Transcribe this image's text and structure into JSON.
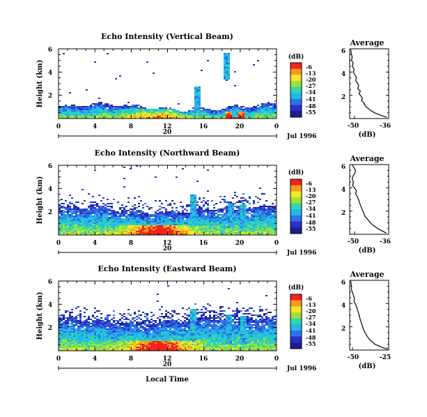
{
  "figure": {
    "xlabel": "Local Time",
    "ylabel": "Height (km)",
    "date_day": "20",
    "date_month_year": "Jul 1996",
    "colorbar_unit": "(dB)",
    "colorbar_ticks": [
      "-6",
      "-13",
      "-20",
      "-27",
      "-34",
      "-41",
      "-48",
      "-55"
    ],
    "colorbar_colors": [
      "#f4231c",
      "#f89a1c",
      "#f7e62a",
      "#9fe03a",
      "#2fd6b0",
      "#22b8ec",
      "#2d72e6",
      "#2c2fc4",
      "#1d1c8e"
    ],
    "avg_title": "Average",
    "avg_xlabel": "(dB)"
  },
  "chart_data": [
    {
      "type": "heatmap",
      "title": "Echo Intensity (Vertical Beam)",
      "xlabel": "Local Time",
      "ylabel": "Height (km)",
      "x_ticks": [
        "0",
        "4",
        "8",
        "12",
        "16",
        "20",
        "0"
      ],
      "y_ticks": [
        "6",
        "4",
        "2"
      ],
      "xlim": [
        0,
        24
      ],
      "ylim": [
        0,
        6
      ],
      "colorbar_range": [
        -55,
        -6
      ],
      "features": [
        {
          "x": 15.3,
          "y_top": 2.7,
          "y_bottom": 0.5
        },
        {
          "x": 18.6,
          "y_top": 5.6,
          "y_bottom": 3.4
        },
        {
          "x": 19.6,
          "y_top": 0.6,
          "y_bottom": 0.1
        }
      ]
    },
    {
      "type": "line",
      "title": "Average",
      "xlabel": "(dB)",
      "x_ticks": [
        "-50",
        "-36"
      ],
      "y_ticks": [
        "6",
        "4",
        "2"
      ],
      "xlim": [
        -52,
        -36
      ],
      "ylim": [
        0,
        6
      ],
      "x": [
        -51.6,
        -51.3,
        -51.0,
        -51.2,
        -50.6,
        -50.9,
        -50.2,
        -50.5,
        -49.8,
        -49.2,
        -49.6,
        -48.8,
        -48.3,
        -48.7,
        -47.6,
        -48.2,
        -47.4,
        -46.8,
        -47.1,
        -46.2,
        -45.8,
        -44.9,
        -44.0,
        -43.1,
        -41.8,
        -40.1,
        -38.4,
        -36.8
      ],
      "y": [
        5.95,
        5.6,
        5.3,
        5.0,
        4.75,
        4.5,
        4.25,
        4.0,
        3.75,
        3.5,
        3.3,
        3.05,
        2.8,
        2.6,
        2.35,
        2.15,
        1.95,
        1.75,
        1.55,
        1.35,
        1.15,
        0.95,
        0.8,
        0.65,
        0.5,
        0.35,
        0.22,
        0.1
      ]
    },
    {
      "type": "heatmap",
      "title": "Echo Intensity (Northward Beam)",
      "xlabel": "Local Time",
      "ylabel": "Height (km)",
      "x_ticks": [
        "0",
        "4",
        "8",
        "12",
        "16",
        "20",
        "0"
      ],
      "y_ticks": [
        "6",
        "4",
        "2"
      ],
      "xlim": [
        0,
        24
      ],
      "ylim": [
        0,
        6
      ],
      "colorbar_range": [
        -55,
        -6
      ],
      "features": [
        {
          "x": 14.8,
          "y_top": 3.5,
          "y_bottom": 0.8
        },
        {
          "x": 19.0,
          "y_top": 2.8,
          "y_bottom": 0.6
        },
        {
          "x": 20.4,
          "y_top": 2.6,
          "y_bottom": 0.6
        }
      ]
    },
    {
      "type": "line",
      "title": "Average",
      "xlabel": "(dB)",
      "x_ticks": [
        "-50",
        "-36"
      ],
      "y_ticks": [
        "6",
        "4",
        "2"
      ],
      "xlim": [
        -52,
        -36
      ],
      "ylim": [
        0,
        6
      ],
      "x": [
        -50.9,
        -50.3,
        -49.6,
        -49.9,
        -50.7,
        -51.0,
        -50.5,
        -50.8,
        -49.9,
        -49.2,
        -49.6,
        -48.9,
        -48.4,
        -48.0,
        -47.6,
        -47.2,
        -46.7,
        -46.2,
        -45.9,
        -45.1,
        -44.3,
        -43.6,
        -42.5,
        -41.2,
        -39.7,
        -38.3,
        -37.0
      ],
      "y": [
        5.95,
        5.75,
        5.5,
        5.25,
        5.0,
        4.75,
        4.5,
        4.2,
        3.95,
        3.75,
        3.5,
        3.25,
        3.0,
        2.75,
        2.5,
        2.3,
        2.05,
        1.85,
        1.6,
        1.4,
        1.2,
        1.0,
        0.8,
        0.6,
        0.4,
        0.25,
        0.1
      ]
    },
    {
      "type": "heatmap",
      "title": "Echo Intensity (Eastward Beam)",
      "xlabel": "Local Time",
      "ylabel": "Height (km)",
      "x_ticks": [
        "0",
        "4",
        "8",
        "12",
        "16",
        "20",
        "0"
      ],
      "y_ticks": [
        "6",
        "4",
        "2"
      ],
      "xlim": [
        0,
        24
      ],
      "ylim": [
        0,
        6
      ],
      "colorbar_range": [
        -55,
        -6
      ],
      "features": [
        {
          "x": 14.9,
          "y_top": 3.6,
          "y_bottom": 0.8
        },
        {
          "x": 18.8,
          "y_top": 3.1,
          "y_bottom": 0.6
        },
        {
          "x": 20.5,
          "y_top": 3.0,
          "y_bottom": 0.6
        }
      ]
    },
    {
      "type": "line",
      "title": "Average",
      "xlabel": "(dB)",
      "x_ticks": [
        "-50",
        "-25"
      ],
      "y_ticks": [
        "6",
        "4",
        "2"
      ],
      "xlim": [
        -52,
        -24
      ],
      "ylim": [
        0,
        6
      ],
      "x": [
        -51.2,
        -51.0,
        -50.6,
        -50.8,
        -49.9,
        -49.3,
        -48.6,
        -48.9,
        -47.8,
        -47.0,
        -46.4,
        -45.7,
        -45.1,
        -44.6,
        -43.9,
        -43.2,
        -42.6,
        -41.8,
        -41.0,
        -40.1,
        -38.9,
        -37.6,
        -35.8,
        -33.9,
        -31.0,
        -28.1,
        -25.6
      ],
      "y": [
        5.95,
        5.7,
        5.45,
        5.2,
        4.95,
        4.7,
        4.45,
        4.2,
        3.95,
        3.7,
        3.45,
        3.2,
        2.95,
        2.7,
        2.45,
        2.2,
        1.95,
        1.7,
        1.5,
        1.3,
        1.1,
        0.9,
        0.7,
        0.5,
        0.35,
        0.2,
        0.1
      ]
    }
  ]
}
